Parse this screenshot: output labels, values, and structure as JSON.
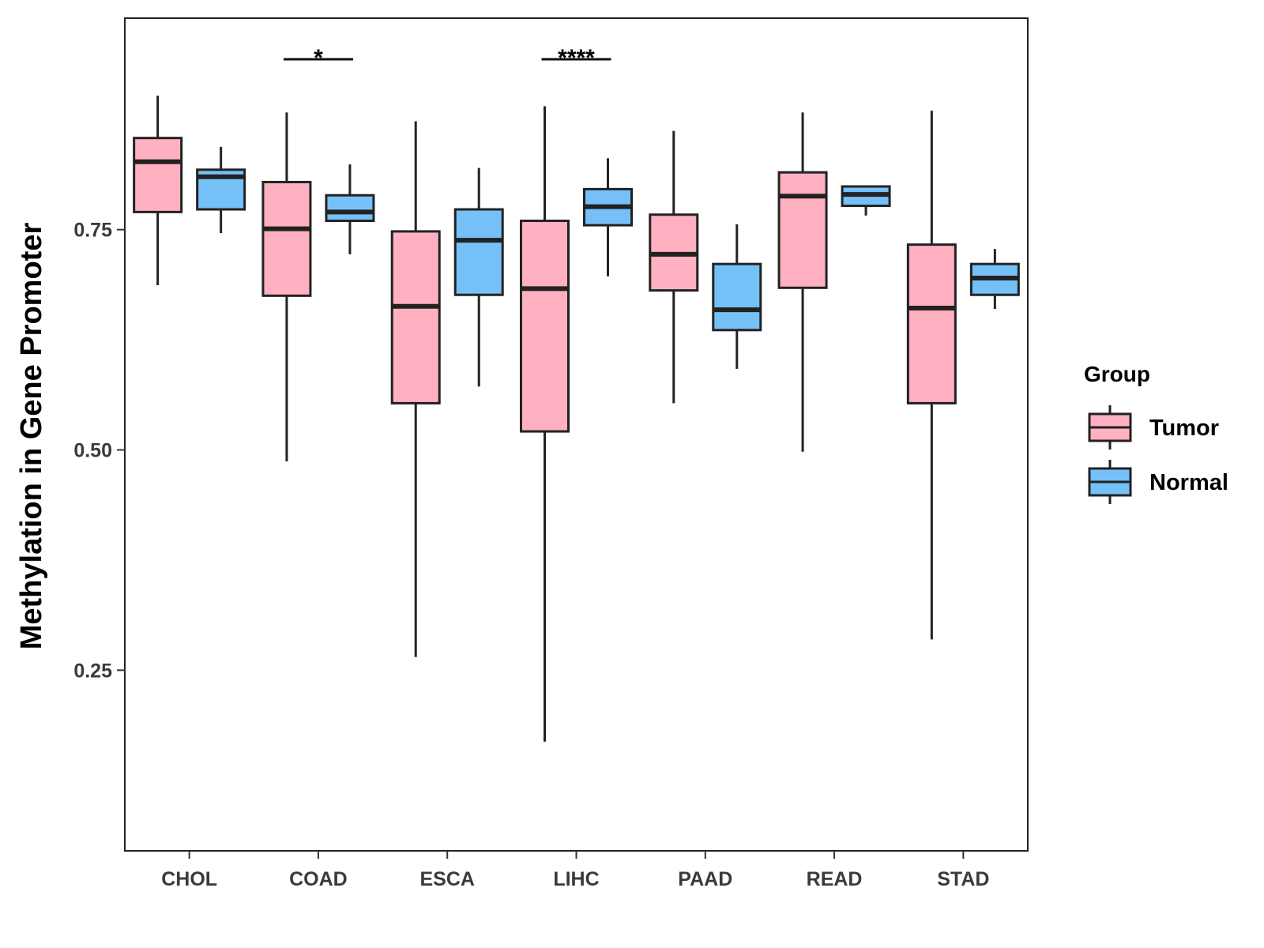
{
  "chart_data": {
    "type": "boxplot",
    "title": "",
    "xlabel": "",
    "ylabel": "Methylation in Gene Promoter",
    "ylim": [
      0.045,
      0.99
    ],
    "yticks": [
      0.25,
      0.5,
      0.75
    ],
    "ytick_labels": [
      "0.25",
      "0.50",
      "0.75"
    ],
    "categories": [
      "CHOL",
      "COAD",
      "ESCA",
      "LIHC",
      "PAAD",
      "READ",
      "STAD"
    ],
    "legend": {
      "title": "Group",
      "position": "right",
      "entries": [
        {
          "name": "Tumor",
          "color": "#FFB0C1"
        },
        {
          "name": "Normal",
          "color": "#75C1F7"
        }
      ]
    },
    "series": [
      {
        "name": "Tumor",
        "color": "#FFB0C1",
        "boxes": [
          {
            "category": "CHOL",
            "whisker_low": 0.687,
            "q1": 0.77,
            "median": 0.827,
            "q3": 0.854,
            "whisker_high": 0.902
          },
          {
            "category": "COAD",
            "whisker_low": 0.487,
            "q1": 0.675,
            "median": 0.751,
            "q3": 0.804,
            "whisker_high": 0.883
          },
          {
            "category": "ESCA",
            "whisker_low": 0.265,
            "q1": 0.553,
            "median": 0.663,
            "q3": 0.748,
            "whisker_high": 0.873
          },
          {
            "category": "LIHC",
            "whisker_low": 0.169,
            "q1": 0.521,
            "median": 0.683,
            "q3": 0.76,
            "whisker_high": 0.89
          },
          {
            "category": "PAAD",
            "whisker_low": 0.553,
            "q1": 0.681,
            "median": 0.722,
            "q3": 0.767,
            "whisker_high": 0.862
          },
          {
            "category": "READ",
            "whisker_low": 0.498,
            "q1": 0.684,
            "median": 0.788,
            "q3": 0.815,
            "whisker_high": 0.883
          },
          {
            "category": "STAD",
            "whisker_low": 0.285,
            "q1": 0.553,
            "median": 0.661,
            "q3": 0.733,
            "whisker_high": 0.885
          }
        ]
      },
      {
        "name": "Normal",
        "color": "#75C1F7",
        "boxes": [
          {
            "category": "CHOL",
            "whisker_low": 0.746,
            "q1": 0.773,
            "median": 0.81,
            "q3": 0.818,
            "whisker_high": 0.844
          },
          {
            "category": "COAD",
            "whisker_low": 0.722,
            "q1": 0.76,
            "median": 0.77,
            "q3": 0.789,
            "whisker_high": 0.824
          },
          {
            "category": "ESCA",
            "whisker_low": 0.572,
            "q1": 0.676,
            "median": 0.738,
            "q3": 0.773,
            "whisker_high": 0.82
          },
          {
            "category": "LIHC",
            "whisker_low": 0.697,
            "q1": 0.755,
            "median": 0.776,
            "q3": 0.796,
            "whisker_high": 0.831
          },
          {
            "category": "PAAD",
            "whisker_low": 0.592,
            "q1": 0.636,
            "median": 0.659,
            "q3": 0.711,
            "whisker_high": 0.756
          },
          {
            "category": "READ",
            "whisker_low": 0.766,
            "q1": 0.777,
            "median": 0.79,
            "q3": 0.799,
            "whisker_high": 0.799
          },
          {
            "category": "STAD",
            "whisker_low": 0.66,
            "q1": 0.676,
            "median": 0.695,
            "q3": 0.711,
            "whisker_high": 0.728
          }
        ]
      }
    ],
    "annotations": [
      {
        "category": "COAD",
        "label": "*"
      },
      {
        "category": "LIHC",
        "label": "****"
      }
    ]
  }
}
